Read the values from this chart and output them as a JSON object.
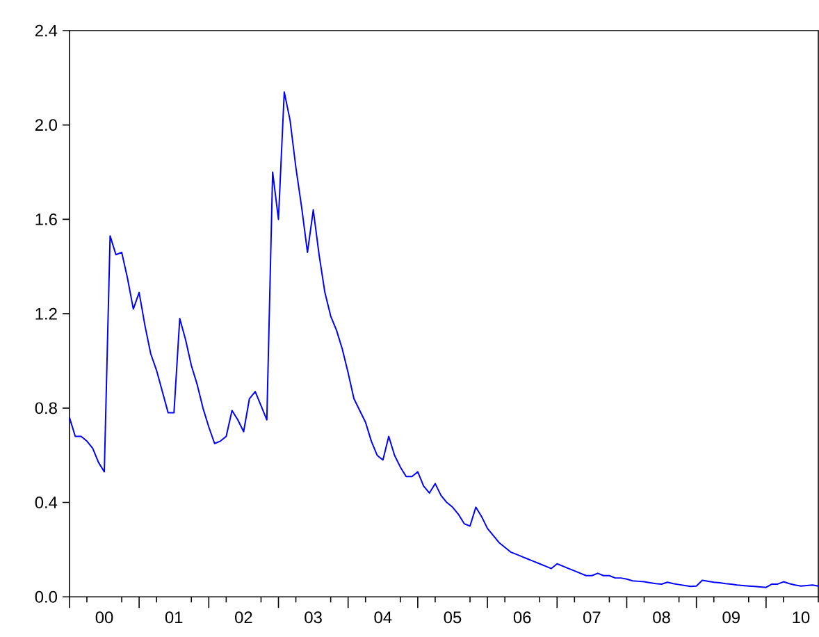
{
  "chart_data": {
    "type": "line",
    "x": [
      "2000-01",
      "2000-02",
      "2000-03",
      "2000-04",
      "2000-05",
      "2000-06",
      "2000-07",
      "2000-08",
      "2000-09",
      "2000-10",
      "2000-11",
      "2000-12",
      "2001-01",
      "2001-02",
      "2001-03",
      "2001-04",
      "2001-05",
      "2001-06",
      "2001-07",
      "2001-08",
      "2001-09",
      "2001-10",
      "2001-11",
      "2001-12",
      "2002-01",
      "2002-02",
      "2002-03",
      "2002-04",
      "2002-05",
      "2002-06",
      "2002-07",
      "2002-08",
      "2002-09",
      "2002-10",
      "2002-11",
      "2002-12",
      "2003-01",
      "2003-02",
      "2003-03",
      "2003-04",
      "2003-05",
      "2003-06",
      "2003-07",
      "2003-08",
      "2003-09",
      "2003-10",
      "2003-11",
      "2003-12",
      "2004-01",
      "2004-02",
      "2004-03",
      "2004-04",
      "2004-05",
      "2004-06",
      "2004-07",
      "2004-08",
      "2004-09",
      "2004-10",
      "2004-11",
      "2004-12",
      "2005-01",
      "2005-02",
      "2005-03",
      "2005-04",
      "2005-05",
      "2005-06",
      "2005-07",
      "2005-08",
      "2005-09",
      "2005-10",
      "2005-11",
      "2005-12",
      "2006-01",
      "2006-02",
      "2006-03",
      "2006-04",
      "2006-05",
      "2006-06",
      "2006-07",
      "2006-08",
      "2006-09",
      "2006-10",
      "2006-11",
      "2006-12",
      "2007-01",
      "2007-02",
      "2007-03",
      "2007-04",
      "2007-05",
      "2007-06",
      "2007-07",
      "2007-08",
      "2007-09",
      "2007-10",
      "2007-11",
      "2007-12",
      "2008-01",
      "2008-02",
      "2008-03",
      "2008-04",
      "2008-05",
      "2008-06",
      "2008-07",
      "2008-08",
      "2008-09",
      "2008-10",
      "2008-11",
      "2008-12",
      "2009-01",
      "2009-02",
      "2009-03",
      "2009-04",
      "2009-05",
      "2009-06",
      "2009-07",
      "2009-08",
      "2009-09",
      "2009-10",
      "2009-11",
      "2009-12",
      "2010-01",
      "2010-02",
      "2010-03",
      "2010-04",
      "2010-05",
      "2010-06",
      "2010-07",
      "2010-08",
      "2010-09",
      "2010-10"
    ],
    "series": [
      {
        "color": "#0000ff",
        "values": [
          0.76,
          0.68,
          0.68,
          0.66,
          0.63,
          0.57,
          0.53,
          1.53,
          1.45,
          1.46,
          1.35,
          1.22,
          1.29,
          1.15,
          1.03,
          0.96,
          0.87,
          0.78,
          0.78,
          1.18,
          1.09,
          0.98,
          0.9,
          0.8,
          0.72,
          0.65,
          0.66,
          0.68,
          0.79,
          0.75,
          0.7,
          0.84,
          0.87,
          0.81,
          0.75,
          1.8,
          1.6,
          2.14,
          2.02,
          1.82,
          1.65,
          1.46,
          1.64,
          1.45,
          1.29,
          1.19,
          1.13,
          1.05,
          0.95,
          0.84,
          0.79,
          0.74,
          0.66,
          0.6,
          0.58,
          0.68,
          0.6,
          0.55,
          0.51,
          0.51,
          0.53,
          0.47,
          0.44,
          0.48,
          0.43,
          0.4,
          0.38,
          0.35,
          0.31,
          0.3,
          0.38,
          0.34,
          0.29,
          0.26,
          0.23,
          0.21,
          0.19,
          0.18,
          0.17,
          0.16,
          0.15,
          0.14,
          0.13,
          0.12,
          0.14,
          0.13,
          0.12,
          0.11,
          0.1,
          0.09,
          0.09,
          0.1,
          0.09,
          0.09,
          0.08,
          0.08,
          0.075,
          0.068,
          0.066,
          0.064,
          0.06,
          0.056,
          0.054,
          0.062,
          0.056,
          0.052,
          0.048,
          0.044,
          0.046,
          0.07,
          0.066,
          0.062,
          0.06,
          0.056,
          0.054,
          0.05,
          0.048,
          0.046,
          0.044,
          0.042,
          0.04,
          0.054,
          0.054,
          0.064,
          0.056,
          0.05,
          0.046,
          0.048,
          0.05,
          0.046
        ]
      }
    ],
    "xlim": [
      "2000-01",
      "2010-10"
    ],
    "xticks": [
      {
        "value": "2000-01",
        "label": null
      },
      {
        "value": "2000-04",
        "label": null
      },
      {
        "value": "2000-07",
        "label": "00"
      },
      {
        "value": "2000-10",
        "label": null
      },
      {
        "value": "2001-01",
        "label": null
      },
      {
        "value": "2001-04",
        "label": null
      },
      {
        "value": "2001-07",
        "label": "01"
      },
      {
        "value": "2001-10",
        "label": null
      },
      {
        "value": "2002-01",
        "label": null
      },
      {
        "value": "2002-04",
        "label": null
      },
      {
        "value": "2002-07",
        "label": "02"
      },
      {
        "value": "2002-10",
        "label": null
      },
      {
        "value": "2003-01",
        "label": null
      },
      {
        "value": "2003-04",
        "label": null
      },
      {
        "value": "2003-07",
        "label": "03"
      },
      {
        "value": "2003-10",
        "label": null
      },
      {
        "value": "2004-01",
        "label": null
      },
      {
        "value": "2004-04",
        "label": null
      },
      {
        "value": "2004-07",
        "label": "04"
      },
      {
        "value": "2004-10",
        "label": null
      },
      {
        "value": "2005-01",
        "label": null
      },
      {
        "value": "2005-04",
        "label": null
      },
      {
        "value": "2005-07",
        "label": "05"
      },
      {
        "value": "2005-10",
        "label": null
      },
      {
        "value": "2006-01",
        "label": null
      },
      {
        "value": "2006-04",
        "label": null
      },
      {
        "value": "2006-07",
        "label": "06"
      },
      {
        "value": "2006-10",
        "label": null
      },
      {
        "value": "2007-01",
        "label": null
      },
      {
        "value": "2007-04",
        "label": null
      },
      {
        "value": "2007-07",
        "label": "07"
      },
      {
        "value": "2007-10",
        "label": null
      },
      {
        "value": "2008-01",
        "label": null
      },
      {
        "value": "2008-04",
        "label": null
      },
      {
        "value": "2008-07",
        "label": "08"
      },
      {
        "value": "2008-10",
        "label": null
      },
      {
        "value": "2009-01",
        "label": null
      },
      {
        "value": "2009-04",
        "label": null
      },
      {
        "value": "2009-07",
        "label": "09"
      },
      {
        "value": "2009-10",
        "label": null
      },
      {
        "value": "2010-01",
        "label": null
      },
      {
        "value": "2010-04",
        "label": null
      },
      {
        "value": "2010-07",
        "label": "10"
      },
      {
        "value": "2010-10",
        "label": null
      }
    ],
    "ylim": [
      0,
      2.4
    ],
    "yticks": [
      {
        "value": 0,
        "label": "0.0"
      },
      0.4,
      0.8,
      1.2,
      1.6,
      {
        "value": 2,
        "label": "2.0"
      },
      2.4
    ],
    "line_style": "solid"
  }
}
